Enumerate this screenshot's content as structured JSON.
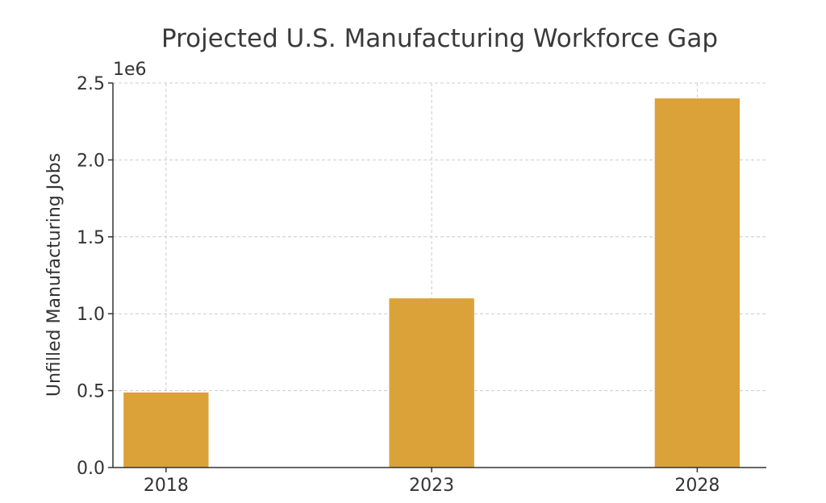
{
  "chart_data": {
    "type": "bar",
    "title": "Projected U.S. Manufacturing Workforce Gap",
    "xlabel": "",
    "ylabel": "Unfilled Manufacturing Jobs",
    "y_offset_label": "1e6",
    "categories": [
      "2018",
      "2023",
      "2028"
    ],
    "x": [
      2018,
      2023,
      2028
    ],
    "values": [
      488000,
      1100000,
      2400000
    ],
    "ylim": [
      0,
      2500000
    ],
    "yticks": [
      0,
      500000,
      1000000,
      1500000,
      2000000,
      2500000
    ],
    "ytick_labels": [
      "0.0",
      "0.5",
      "1.0",
      "1.5",
      "2.0",
      "2.5"
    ],
    "grid": true,
    "bar_color": "#DAA238"
  }
}
